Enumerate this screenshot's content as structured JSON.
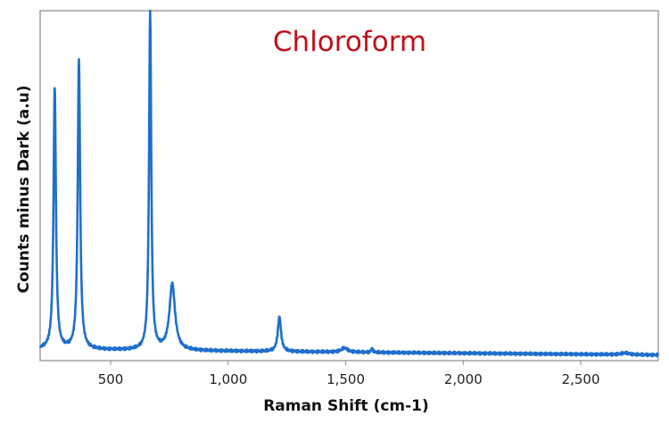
{
  "chart_data": {
    "type": "line",
    "title": "Chloroform",
    "xlabel": "Raman Shift (cm-1)",
    "ylabel": "Counts minus Dark (a.u)",
    "xlim": [
      200,
      2830
    ],
    "ylim": [
      0,
      100
    ],
    "x_ticks": [
      500,
      1000,
      1500,
      2000,
      2500
    ],
    "x_tick_labels": [
      "500",
      "1,000",
      "1,500",
      "2,000",
      "2,500"
    ],
    "grid": false,
    "legend": "none",
    "series": [
      {
        "color": "#1f6fcc",
        "baseline": 3.2,
        "baseline_slope": -0.0006,
        "peaks": [
          {
            "x": 262,
            "height": 75,
            "width": 6
          },
          {
            "x": 365,
            "height": 83,
            "width": 6
          },
          {
            "x": 668,
            "height": 97,
            "width": 5.5
          },
          {
            "x": 762,
            "height": 19,
            "width": 14
          },
          {
            "x": 1218,
            "height": 10,
            "width": 8
          },
          {
            "x": 1495,
            "height": 1.2,
            "width": 16
          },
          {
            "x": 1612,
            "height": 1.2,
            "width": 4
          },
          {
            "x": 2690,
            "height": 0.5,
            "width": 20
          }
        ]
      }
    ]
  },
  "colors": {
    "title": "#c0101a",
    "axis": "#888888",
    "line": "#1f6fcc"
  }
}
